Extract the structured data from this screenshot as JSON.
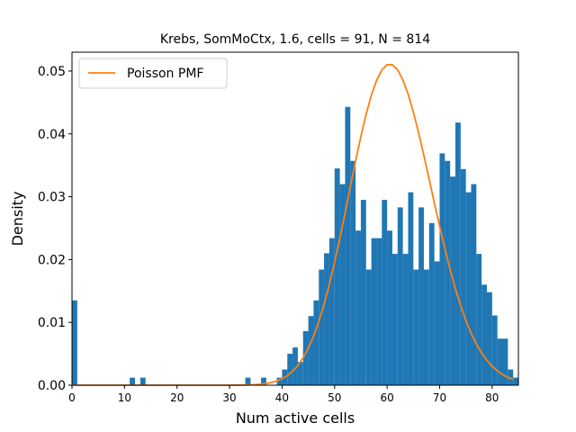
{
  "chart_data": {
    "type": "bar",
    "title": "Krebs, SomMoCtx, 1.6, cells = 91, N = 814",
    "xlabel": "Num active cells",
    "ylabel": "Density",
    "xlim": [
      0,
      85
    ],
    "ylim": [
      0,
      0.053
    ],
    "xticks": [
      0,
      10,
      20,
      30,
      40,
      50,
      60,
      70,
      80
    ],
    "yticks": [
      0.0,
      0.01,
      0.02,
      0.03,
      0.04,
      0.05
    ],
    "ytick_labels": [
      "0.00",
      "0.01",
      "0.02",
      "0.03",
      "0.04",
      "0.05"
    ],
    "grid": false,
    "legend_placement": "top-left",
    "bin_width": 1,
    "histogram": {
      "x": [
        0,
        11,
        13,
        33,
        36,
        39,
        40,
        41,
        42,
        43,
        44,
        45,
        46,
        47,
        48,
        49,
        50,
        51,
        52,
        53,
        54,
        55,
        56,
        57,
        58,
        59,
        60,
        61,
        62,
        63,
        64,
        65,
        66,
        67,
        68,
        69,
        70,
        71,
        72,
        73,
        74,
        75,
        76,
        77,
        78,
        79,
        80,
        81,
        82,
        83,
        84
      ],
      "values": [
        0.0135,
        0.0012,
        0.0012,
        0.0012,
        0.0012,
        0.0012,
        0.0025,
        0.005,
        0.006,
        0.0037,
        0.0086,
        0.011,
        0.0135,
        0.0184,
        0.021,
        0.0234,
        0.0345,
        0.032,
        0.0443,
        0.0357,
        0.0246,
        0.0295,
        0.0184,
        0.0234,
        0.0234,
        0.0295,
        0.0246,
        0.0209,
        0.0283,
        0.0209,
        0.0307,
        0.0184,
        0.0283,
        0.0184,
        0.0258,
        0.0197,
        0.0369,
        0.0357,
        0.0332,
        0.0418,
        0.0344,
        0.0307,
        0.032,
        0.0209,
        0.016,
        0.0148,
        0.0111,
        0.0074,
        0.0074,
        0.0025,
        0.0012
      ]
    },
    "series": [
      {
        "name": "Poisson PMF",
        "color": "#ff7f0e",
        "type": "line",
        "distribution": "poisson",
        "mean": 61.0,
        "x_range": [
          0,
          84
        ]
      }
    ],
    "colors": {
      "histogram": "#1f77b4",
      "line": "#ff7f0e"
    }
  }
}
